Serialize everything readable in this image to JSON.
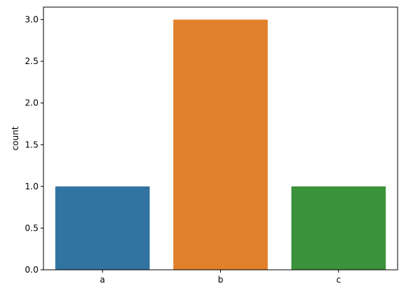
{
  "chart_data": {
    "type": "bar",
    "categories": [
      "a",
      "b",
      "c"
    ],
    "values": [
      1,
      3,
      1
    ],
    "colors": [
      "#3274a1",
      "#e1812c",
      "#3a923a"
    ],
    "title": "",
    "xlabel": "",
    "ylabel": "count",
    "ylim": [
      0,
      3.15
    ],
    "yticks": [
      0.0,
      0.5,
      1.0,
      1.5,
      2.0,
      2.5,
      3.0
    ],
    "ytick_labels": [
      "0.0",
      "0.5",
      "1.0",
      "1.5",
      "2.0",
      "2.5",
      "3.0"
    ],
    "grid": false,
    "legend": "none"
  }
}
